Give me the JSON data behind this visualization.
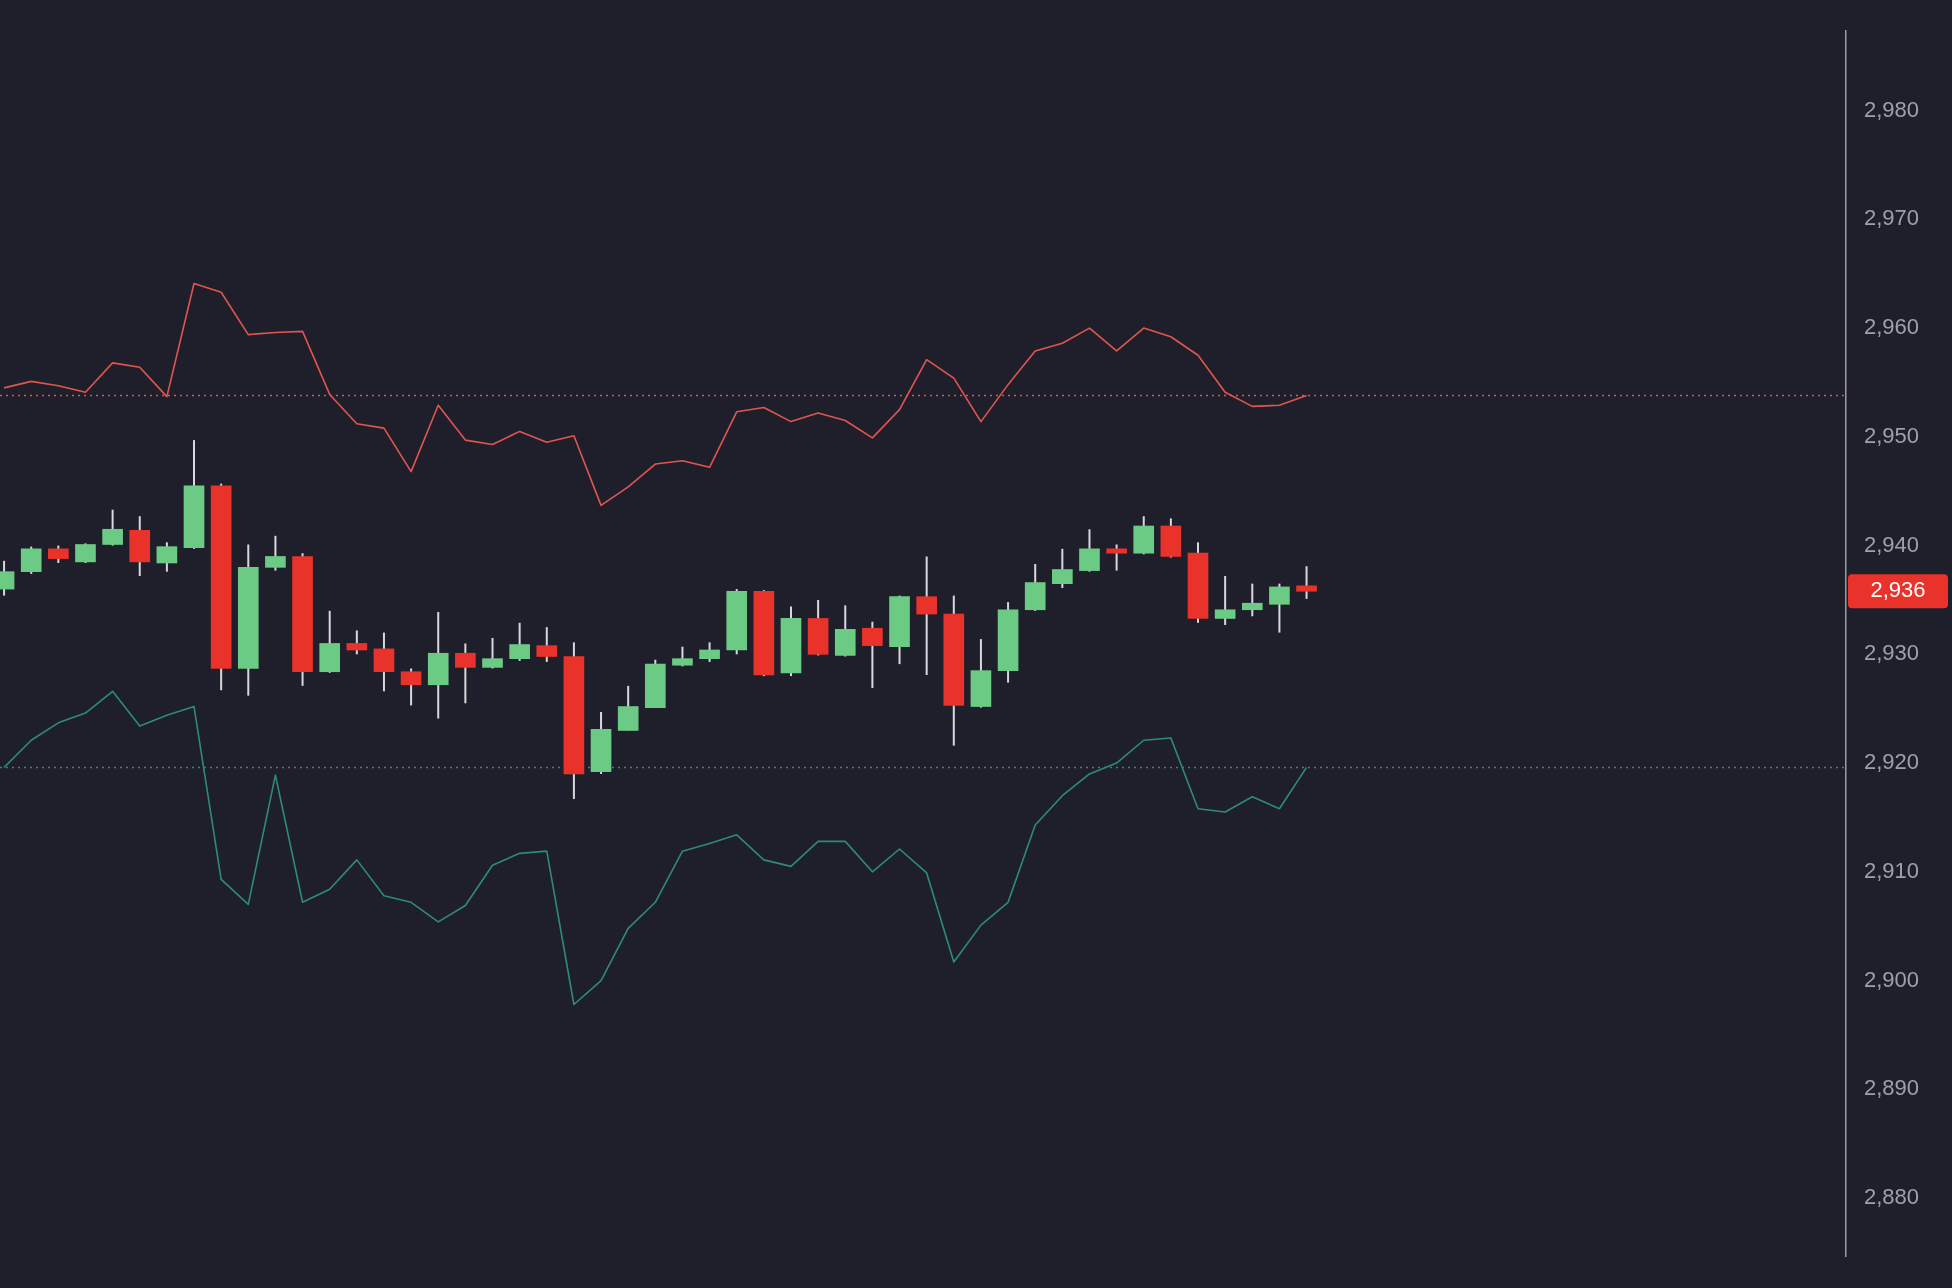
{
  "chart_data": {
    "type": "candlestick",
    "categories": [
      null,
      null,
      null,
      null,
      null,
      null,
      null,
      null,
      null,
      null,
      null,
      null,
      null,
      null,
      null,
      null,
      null,
      null,
      null,
      null,
      null,
      null,
      null,
      null,
      null,
      null,
      null,
      null,
      null,
      null,
      null,
      null,
      null,
      null,
      null,
      null,
      null,
      null,
      null,
      null,
      null,
      null,
      null,
      null,
      null,
      null,
      null,
      null,
      null
    ],
    "ohlc": [
      [
        2936.0,
        2938.6,
        2935.4,
        2937.6
      ],
      [
        2937.6,
        2939.9,
        2937.4,
        2939.7
      ],
      [
        2939.7,
        2940.0,
        2938.4,
        2938.8
      ],
      [
        2938.5,
        2940.2,
        2938.4,
        2940.1
      ],
      [
        2940.1,
        2943.3,
        2940.0,
        2941.5
      ],
      [
        2941.4,
        2942.7,
        2937.2,
        2938.5
      ],
      [
        2938.4,
        2940.3,
        2937.6,
        2939.9
      ],
      [
        2939.8,
        2949.7,
        2939.7,
        2945.5
      ],
      [
        2945.5,
        2945.7,
        2926.7,
        2928.7
      ],
      [
        2928.7,
        2940.1,
        2926.2,
        2938.0
      ],
      [
        2938.0,
        2940.9,
        2937.7,
        2939.0
      ],
      [
        2939.0,
        2939.3,
        2927.1,
        2928.4
      ],
      [
        2928.4,
        2934.0,
        2928.3,
        2931.0
      ],
      [
        2931.0,
        2932.2,
        2930.0,
        2930.4
      ],
      [
        2930.5,
        2932.0,
        2926.6,
        2928.4
      ],
      [
        2928.4,
        2928.7,
        2925.3,
        2927.2
      ],
      [
        2927.2,
        2933.9,
        2924.1,
        2930.1
      ],
      [
        2930.1,
        2931.0,
        2925.5,
        2928.8
      ],
      [
        2928.8,
        2931.5,
        2928.7,
        2929.6
      ],
      [
        2929.6,
        2932.9,
        2929.4,
        2930.9
      ],
      [
        2930.8,
        2932.5,
        2929.3,
        2929.8
      ],
      [
        2929.8,
        2931.1,
        2916.7,
        2919.0
      ],
      [
        2919.2,
        2924.7,
        2919.0,
        2923.1
      ],
      [
        2923.0,
        2927.1,
        2923.0,
        2925.2
      ],
      [
        2925.1,
        2929.5,
        2925.1,
        2929.1
      ],
      [
        2929.0,
        2930.7,
        2928.9,
        2929.6
      ],
      [
        2929.6,
        2931.1,
        2929.3,
        2930.4
      ],
      [
        2930.4,
        2936.0,
        2930.0,
        2935.8
      ],
      [
        2935.8,
        2935.9,
        2928.0,
        2928.1
      ],
      [
        2928.3,
        2934.4,
        2928.0,
        2933.3
      ],
      [
        2933.3,
        2935.0,
        2929.9,
        2930.0
      ],
      [
        2929.9,
        2934.5,
        2929.8,
        2932.3
      ],
      [
        2932.4,
        2933.0,
        2926.9,
        2930.8
      ],
      [
        2930.7,
        2935.4,
        2929.1,
        2935.3
      ],
      [
        2935.3,
        2939.0,
        2928.1,
        2933.7
      ],
      [
        2933.7,
        2935.4,
        2921.6,
        2925.3
      ],
      [
        2925.2,
        2931.4,
        2925.1,
        2928.5
      ],
      [
        2928.5,
        2934.8,
        2927.4,
        2934.1
      ],
      [
        2934.1,
        2938.3,
        2934.0,
        2936.6
      ],
      [
        2936.5,
        2939.7,
        2936.1,
        2937.8
      ],
      [
        2937.7,
        2941.5,
        2937.6,
        2939.7
      ],
      [
        2939.7,
        2940.1,
        2937.7,
        2939.3
      ],
      [
        2939.3,
        2942.7,
        2939.2,
        2941.8
      ],
      [
        2941.8,
        2942.5,
        2938.9,
        2939.0
      ],
      [
        2939.3,
        2940.3,
        2932.9,
        2933.3
      ],
      [
        2933.3,
        2937.2,
        2932.7,
        2934.1
      ],
      [
        2934.1,
        2936.5,
        2933.5,
        2934.7
      ],
      [
        2934.6,
        2936.5,
        2932.0,
        2936.2
      ],
      [
        2936.3,
        2938.1,
        2935.1,
        2935.8
      ]
    ],
    "colors": [
      "#6bcb84",
      "#6bcb84",
      "#e8322a",
      "#6bcb84",
      "#6bcb84",
      "#e8322a",
      "#6bcb84",
      "#6bcb84",
      "#e8322a",
      "#6bcb84",
      "#6bcb84",
      "#e8322a",
      "#6bcb84",
      "#e8322a",
      "#e8322a",
      "#e8322a",
      "#6bcb84",
      "#e8322a",
      "#6bcb84",
      "#6bcb84",
      "#e8322a",
      "#e8322a",
      "#6bcb84",
      "#6bcb84",
      "#6bcb84",
      "#6bcb84",
      "#6bcb84",
      "#6bcb84",
      "#e8322a",
      "#6bcb84",
      "#e8322a",
      "#6bcb84",
      "#e8322a",
      "#6bcb84",
      "#e8322a",
      "#e8322a",
      "#6bcb84",
      "#6bcb84",
      "#6bcb84",
      "#6bcb84",
      "#6bcb84",
      "#e8322a",
      "#6bcb84",
      "#e8322a",
      "#e8322a",
      "#6bcb84",
      "#6bcb84",
      "#6bcb84",
      "#e8322a"
    ],
    "series": [
      {
        "type": "line",
        "color": "#e0564f",
        "values": [
          2954.5,
          2955.1,
          2954.7,
          2954.1,
          2956.8,
          2956.4,
          2953.7,
          2964.1,
          2963.3,
          2959.4,
          2959.6,
          2959.7,
          2953.9,
          2951.2,
          2950.8,
          2946.8,
          2952.9,
          2949.7,
          2949.3,
          2950.5,
          2949.5,
          2950.1,
          2943.7,
          2945.4,
          2947.5,
          2947.8,
          2947.2,
          2952.3,
          2952.7,
          2951.4,
          2952.2,
          2951.5,
          2949.9,
          2952.5,
          2957.1,
          2955.4,
          2951.4,
          2954.8,
          2957.9,
          2958.6,
          2960.0,
          2957.9,
          2960.0,
          2959.2,
          2957.5,
          2954.1,
          2952.8,
          2952.9,
          2953.8
        ]
      },
      {
        "type": "line",
        "color": "#2e8a7e",
        "values": [
          2919.6,
          2922.1,
          2923.7,
          2924.6,
          2926.6,
          2923.4,
          2924.4,
          2925.2,
          2909.3,
          2907.0,
          2918.9,
          2907.2,
          2908.4,
          2911.1,
          2907.8,
          2907.2,
          2905.4,
          2906.9,
          2910.6,
          2911.7,
          2911.9,
          2897.8,
          2900.0,
          2904.8,
          2907.2,
          2911.9,
          2912.6,
          2913.4,
          2911.1,
          2910.5,
          2912.8,
          2912.8,
          2910.0,
          2912.1,
          2909.9,
          2901.7,
          2905.1,
          2907.2,
          2914.3,
          2917.0,
          2919.0,
          2920.0,
          2922.1,
          2922.3,
          2915.8,
          2915.5,
          2916.9,
          2915.8,
          2919.6
        ]
      }
    ],
    "ref_lines": [
      {
        "axis": "y",
        "value": 2953.8,
        "color": "#e0564f",
        "line_style": "dotted"
      },
      {
        "axis": "y",
        "value": 2919.6,
        "color": "#2e8a7e",
        "line_style": "dotted"
      }
    ],
    "annotations": [
      "2,936"
    ],
    "ylim": [
      2874.6,
      2987.3
    ],
    "yticks": [
      {
        "value": 2880,
        "label": "2,880"
      },
      {
        "value": 2890,
        "label": "2,890"
      },
      {
        "value": 2900,
        "label": "2,900"
      },
      {
        "value": 2910,
        "label": "2,910"
      },
      {
        "value": 2920,
        "label": "2,920"
      },
      {
        "value": 2930,
        "label": "2,930"
      },
      {
        "value": 2940,
        "label": "2,940"
      },
      {
        "value": 2950,
        "label": "2,950"
      },
      {
        "value": 2960,
        "label": "2,960"
      },
      {
        "value": 2970,
        "label": "2,970"
      },
      {
        "value": 2980,
        "label": "2,980"
      }
    ],
    "tick_labels": "y"
  }
}
